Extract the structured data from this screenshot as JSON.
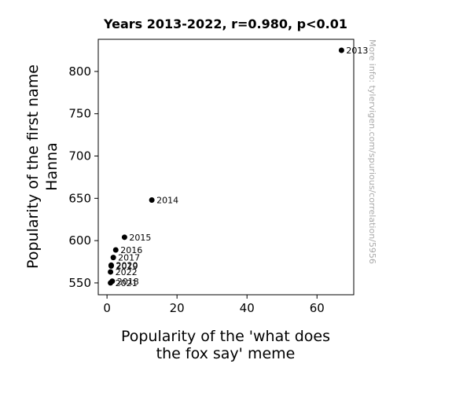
{
  "chart_data": {
    "type": "scatter",
    "title": "Years 2013-2022, r=0.980, p<0.01",
    "xlabel_lines": [
      "Popularity of the 'what does",
      "the fox say' meme"
    ],
    "ylabel_lines": [
      "Popularity of the first name",
      "Hanna"
    ],
    "xlim": [
      -2.5,
      70.5
    ],
    "ylim": [
      536,
      838
    ],
    "xticks": [
      0,
      20,
      40,
      60
    ],
    "yticks": [
      550,
      600,
      650,
      700,
      750,
      800
    ],
    "points": [
      {
        "label": "2013",
        "x": 67,
        "y": 825
      },
      {
        "label": "2014",
        "x": 12.8,
        "y": 648
      },
      {
        "label": "2015",
        "x": 5,
        "y": 604
      },
      {
        "label": "2016",
        "x": 2.5,
        "y": 589
      },
      {
        "label": "2017",
        "x": 1.8,
        "y": 580
      },
      {
        "label": "2018",
        "x": 1.5,
        "y": 552
      },
      {
        "label": "2019",
        "x": 1.2,
        "y": 570
      },
      {
        "label": "2020",
        "x": 1.2,
        "y": 571
      },
      {
        "label": "2021",
        "x": 1.0,
        "y": 550
      },
      {
        "label": "2022",
        "x": 1.0,
        "y": 563
      }
    ],
    "marker_color": "#000000",
    "grid": false,
    "legend": "none"
  },
  "watermark": "More info: tylervigen.com/spurious/correlation/5956"
}
